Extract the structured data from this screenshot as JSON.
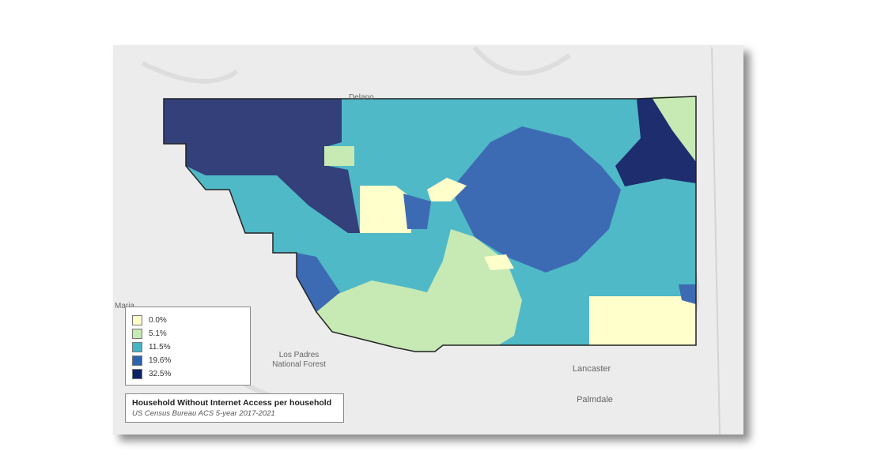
{
  "map": {
    "legend": {
      "items": [
        {
          "label": "0.0%",
          "color": "#ffffcc"
        },
        {
          "label": "5.1%",
          "color": "#c7e9b4"
        },
        {
          "label": "11.5%",
          "color": "#41b6c4"
        },
        {
          "label": "19.6%",
          "color": "#2c63b0"
        },
        {
          "label": "32.5%",
          "color": "#0c2266"
        }
      ]
    },
    "title": "Household Without Internet Access per household",
    "source": "US Census Bureau ACS 5-year 2017-2021",
    "place_labels": [
      "Delano",
      "Maria",
      "Los Padres",
      "National Forest",
      "Lancaster",
      "Palmdale"
    ]
  }
}
